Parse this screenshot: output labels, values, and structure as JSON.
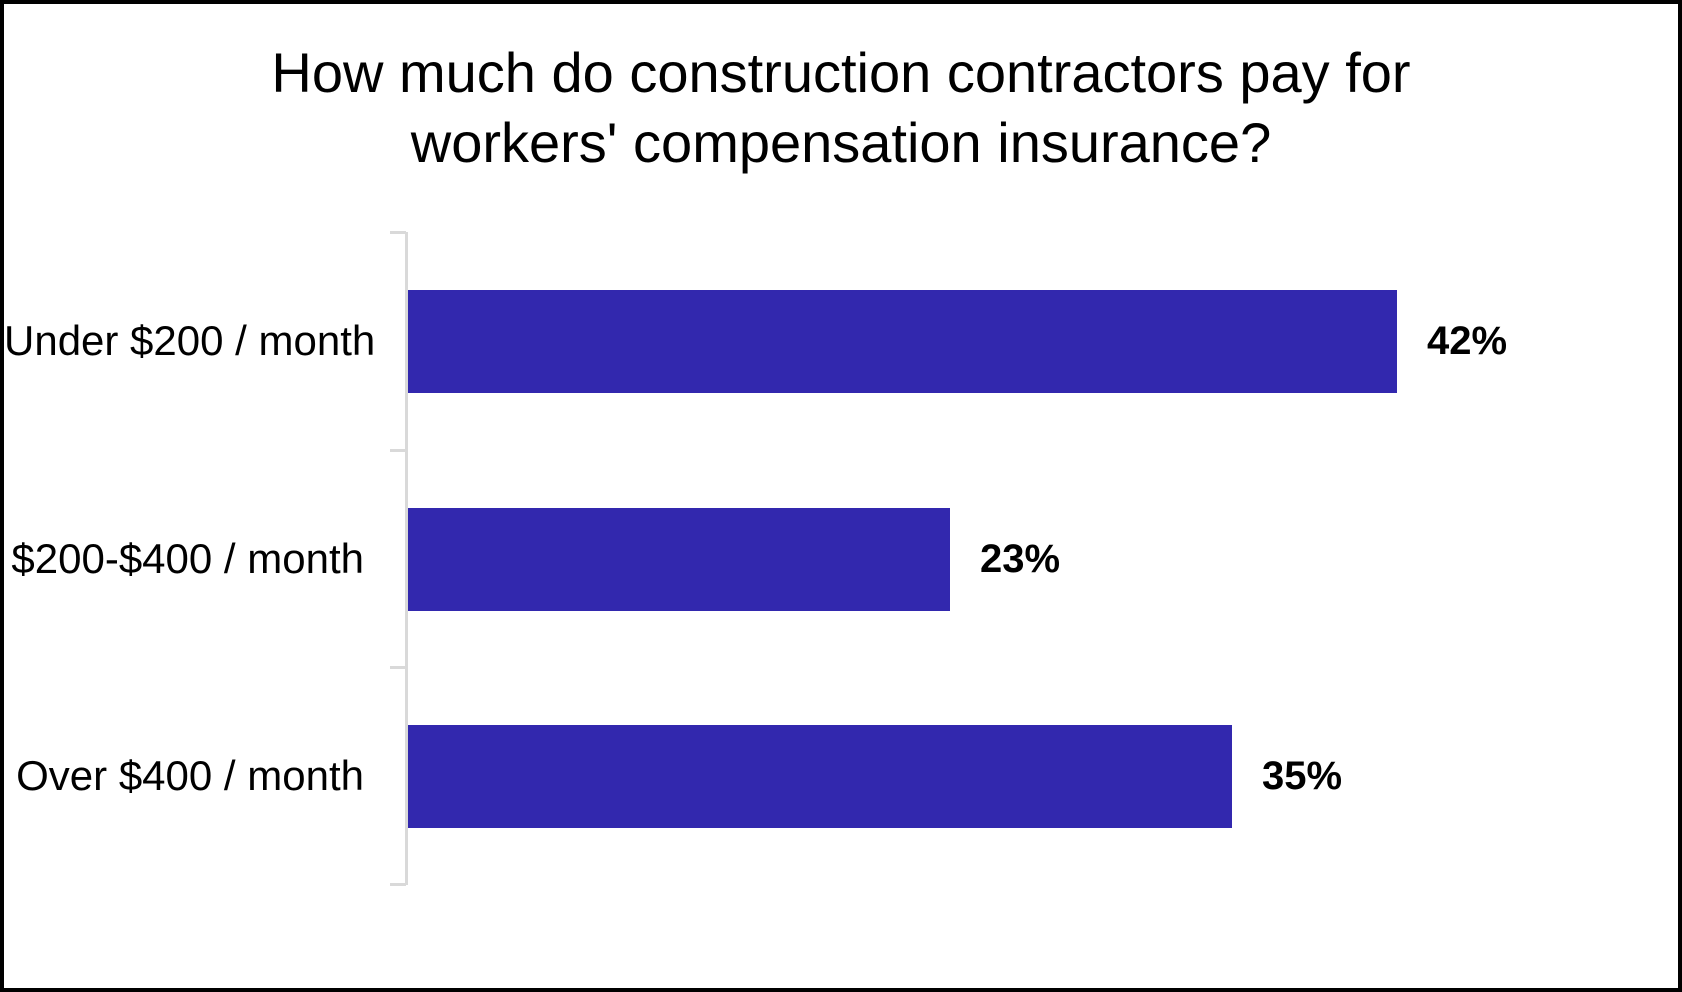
{
  "frame": {
    "border_color": "#000000",
    "background_color": "#ffffff"
  },
  "chart": {
    "title_line1": "How much do construction contractors pay for",
    "title_line2": "workers' compensation insurance?"
  },
  "chart_data": {
    "type": "bar",
    "orientation": "horizontal",
    "title": "How much do construction contractors pay for workers' compensation insurance?",
    "categories": [
      "Under $200 / month",
      "$200-$400 / month",
      "Over $400 / month"
    ],
    "values": [
      42,
      23,
      35
    ],
    "value_labels": [
      "42%",
      "23%",
      "35%"
    ],
    "unit": "%",
    "xlim": [
      0,
      45
    ],
    "grid": false,
    "legend": false,
    "bar_color": "#3228AE",
    "axis_color": "#D9D9D9",
    "label_color": "#000000",
    "value_label_color": "#000000"
  }
}
